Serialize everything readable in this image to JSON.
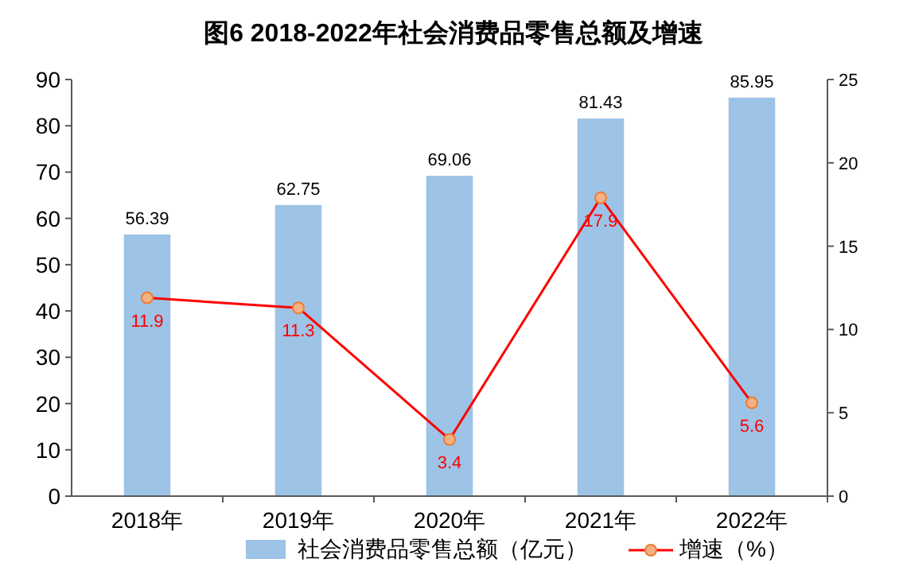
{
  "chart_data": {
    "type": "bar",
    "title": "图6  2018-2022年社会消费品零售总额及增速",
    "categories": [
      "2018年",
      "2019年",
      "2020年",
      "2021年",
      "2022年"
    ],
    "series": [
      {
        "name": "社会消费品零售总额（亿元）",
        "color": "#9dc3e6",
        "values": [
          56.39,
          62.75,
          69.06,
          81.43,
          85.95
        ]
      },
      {
        "name": "增速（%）",
        "type": "line",
        "axis": "y2",
        "color": "#ff0000",
        "marker": "circle",
        "values": [
          11.9,
          11.3,
          3.4,
          17.9,
          5.6
        ]
      }
    ],
    "ylim": [
      0,
      90
    ],
    "yticks": [
      0,
      10,
      20,
      30,
      40,
      50,
      60,
      70,
      80,
      90
    ],
    "y2lim": [
      0,
      25
    ],
    "y2ticks": [
      0,
      5,
      10,
      15,
      20,
      25
    ],
    "data_labels": true,
    "legend": "bottom",
    "grid": false
  }
}
